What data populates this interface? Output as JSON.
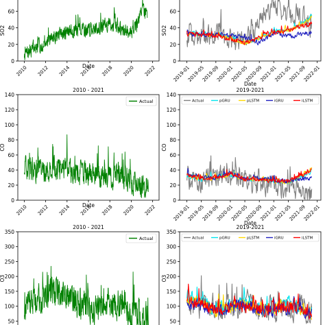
{
  "chart_data": [
    {
      "type": "line",
      "title": "",
      "xlabel": "Date",
      "ylabel": "SO2",
      "xlim": [
        2009.4,
        2022.6
      ],
      "ylim": [
        0,
        90
      ],
      "xticks": [
        "2010",
        "2012",
        "2014",
        "2016",
        "2018",
        "2020",
        "2022"
      ],
      "yticks": [
        0,
        20,
        40,
        60,
        80
      ],
      "legend": null,
      "series": [
        {
          "name": "Actual",
          "color": "#008000",
          "trend": [
            [
              2010.0,
              8
            ],
            [
              2011.0,
              15
            ],
            [
              2012.0,
              22
            ],
            [
              2013.0,
              30
            ],
            [
              2014.0,
              35
            ],
            [
              2015.0,
              38
            ],
            [
              2016.0,
              38
            ],
            [
              2017.0,
              40
            ],
            [
              2018.0,
              45
            ],
            [
              2019.0,
              38
            ],
            [
              2020.0,
              34
            ],
            [
              2020.6,
              45
            ],
            [
              2021.0,
              65
            ],
            [
              2021.5,
              55
            ]
          ],
          "noise": 12
        }
      ]
    },
    {
      "type": "line",
      "title": "",
      "xlabel": "Date",
      "ylabel": "SO2",
      "xlim": [
        "2018-11-01",
        "2022-02-01"
      ],
      "ylim": [
        0,
        90
      ],
      "xticks": [
        "2019-01",
        "2019-05",
        "2019-09",
        "2020-01",
        "2020-05",
        "2020-09",
        "2021-01",
        "2021-05",
        "2021-09",
        "2022-01"
      ],
      "yticks": [
        0,
        20,
        40,
        60,
        80
      ],
      "legend": null,
      "series": [
        {
          "name": "Actual",
          "color": "#808080",
          "trend": [
            [
              "2019-01-01",
              30
            ],
            [
              "2019-05-01",
              28
            ],
            [
              "2019-09-01",
              32
            ],
            [
              "2020-01-01",
              25
            ],
            [
              "2020-05-01",
              22
            ],
            [
              "2020-09-01",
              45
            ],
            [
              "2021-01-01",
              70
            ],
            [
              "2021-05-01",
              55
            ],
            [
              "2021-09-01",
              55
            ],
            [
              "2021-11-15",
              40
            ]
          ],
          "noise": 18
        },
        {
          "name": "pGRU",
          "color": "#00e5ee",
          "trend": [
            [
              "2019-01-01",
              34
            ],
            [
              "2019-05-01",
              32
            ],
            [
              "2019-09-01",
              32
            ],
            [
              "2020-01-01",
              28
            ],
            [
              "2020-05-01",
              22
            ],
            [
              "2020-09-01",
              28
            ],
            [
              "2021-01-01",
              35
            ],
            [
              "2021-05-01",
              38
            ],
            [
              "2021-09-01",
              45
            ],
            [
              "2021-11-15",
              55
            ]
          ],
          "noise": 3
        },
        {
          "name": "pLSTM",
          "color": "#ffd700",
          "trend": [
            [
              "2019-01-01",
              33
            ],
            [
              "2019-05-01",
              31
            ],
            [
              "2019-09-01",
              31
            ],
            [
              "2020-01-01",
              27
            ],
            [
              "2020-05-01",
              21
            ],
            [
              "2020-09-01",
              27
            ],
            [
              "2021-01-01",
              34
            ],
            [
              "2021-05-01",
              37
            ],
            [
              "2021-09-01",
              44
            ],
            [
              "2021-11-15",
              53
            ]
          ],
          "noise": 3
        },
        {
          "name": "iGRU",
          "color": "#1f1fbf",
          "trend": [
            [
              "2019-01-01",
              33
            ],
            [
              "2019-05-01",
              32
            ],
            [
              "2019-09-01",
              32
            ],
            [
              "2020-01-01",
              30
            ],
            [
              "2020-05-01",
              28
            ],
            [
              "2020-09-01",
              22
            ],
            [
              "2021-01-01",
              33
            ],
            [
              "2021-05-01",
              30
            ],
            [
              "2021-09-01",
              32
            ],
            [
              "2021-11-15",
              34
            ]
          ],
          "noise": 4
        },
        {
          "name": "iLSTM",
          "color": "#ff0000",
          "trend": [
            [
              "2019-01-01",
              32
            ],
            [
              "2019-05-01",
              31
            ],
            [
              "2019-09-01",
              31
            ],
            [
              "2020-01-01",
              27
            ],
            [
              "2020-05-01",
              22
            ],
            [
              "2020-09-01",
              28
            ],
            [
              "2021-01-01",
              34
            ],
            [
              "2021-05-01",
              37
            ],
            [
              "2021-09-01",
              42
            ],
            [
              "2021-11-15",
              45
            ]
          ],
          "noise": 4
        }
      ]
    },
    {
      "type": "line",
      "title": "2010 - 2021",
      "xlabel": "Date",
      "ylabel": "CO",
      "xlim": [
        2009.4,
        2022.6
      ],
      "ylim": [
        0,
        140
      ],
      "xticks": [
        "2010",
        "2012",
        "2014",
        "2016",
        "2018",
        "2020",
        "2022"
      ],
      "yticks": [
        0,
        20,
        40,
        60,
        80,
        100,
        120,
        140
      ],
      "legend": "top-right",
      "series": [
        {
          "name": "Actual",
          "color": "#008000",
          "trend": [
            [
              2010.0,
              40
            ],
            [
              2012.0,
              38
            ],
            [
              2013.0,
              42
            ],
            [
              2014.0,
              38
            ],
            [
              2016.0,
              35
            ],
            [
              2018.0,
              32
            ],
            [
              2019.0,
              30
            ],
            [
              2020.0,
              25
            ],
            [
              2021.0,
              15
            ],
            [
              2021.6,
              14
            ]
          ],
          "noise": 22
        }
      ]
    },
    {
      "type": "line",
      "title": "2019-2021",
      "xlabel": "Date",
      "ylabel": "CO",
      "xlim": [
        "2018-11-01",
        "2022-02-01"
      ],
      "ylim": [
        0,
        140
      ],
      "xticks": [
        "2019-01",
        "2019-05",
        "2019-09",
        "2020-01",
        "2020-05",
        "2020-09",
        "2021-01",
        "2021-05",
        "2021-09",
        "2022-01"
      ],
      "yticks": [
        0,
        20,
        40,
        60,
        80,
        100,
        120,
        140
      ],
      "legend": "top",
      "series": [
        {
          "name": "Actual",
          "color": "#808080",
          "trend": [
            [
              "2019-01-01",
              30
            ],
            [
              "2019-05-01",
              25
            ],
            [
              "2019-09-01",
              30
            ],
            [
              "2020-01-01",
              32
            ],
            [
              "2020-05-01",
              25
            ],
            [
              "2020-09-01",
              22
            ],
            [
              "2021-01-01",
              20
            ],
            [
              "2021-05-01",
              15
            ],
            [
              "2021-09-01",
              12
            ],
            [
              "2021-11-15",
              10
            ]
          ],
          "noise": 20
        },
        {
          "name": "pGRU",
          "color": "#00e5ee",
          "trend": [
            [
              "2019-01-01",
              33
            ],
            [
              "2019-05-01",
              28
            ],
            [
              "2019-09-01",
              30
            ],
            [
              "2020-01-01",
              34
            ],
            [
              "2020-05-01",
              28
            ],
            [
              "2020-09-01",
              28
            ],
            [
              "2021-01-01",
              25
            ],
            [
              "2021-05-01",
              24
            ],
            [
              "2021-09-01",
              32
            ],
            [
              "2021-11-15",
              38
            ]
          ],
          "noise": 4
        },
        {
          "name": "pLSTM",
          "color": "#ffd700",
          "trend": [
            [
              "2019-01-01",
              33
            ],
            [
              "2019-05-01",
              28
            ],
            [
              "2019-09-01",
              30
            ],
            [
              "2020-01-01",
              34
            ],
            [
              "2020-05-01",
              28
            ],
            [
              "2020-09-01",
              28
            ],
            [
              "2021-01-01",
              25
            ],
            [
              "2021-05-01",
              24
            ],
            [
              "2021-09-01",
              34
            ],
            [
              "2021-11-15",
              42
            ]
          ],
          "noise": 4
        },
        {
          "name": "iGRU",
          "color": "#1f1fbf",
          "trend": [
            [
              "2019-01-01",
              35
            ],
            [
              "2019-05-01",
              30
            ],
            [
              "2019-09-01",
              30
            ],
            [
              "2020-01-01",
              36
            ],
            [
              "2020-05-01",
              28
            ],
            [
              "2020-09-01",
              28
            ],
            [
              "2021-01-01",
              26
            ],
            [
              "2021-05-01",
              25
            ],
            [
              "2021-09-01",
              28
            ],
            [
              "2021-11-15",
              30
            ]
          ],
          "noise": 4
        },
        {
          "name": "iLSTM",
          "color": "#ff0000",
          "trend": [
            [
              "2019-01-01",
              34
            ],
            [
              "2019-05-01",
              29
            ],
            [
              "2019-09-01",
              30
            ],
            [
              "2020-01-01",
              35
            ],
            [
              "2020-05-01",
              28
            ],
            [
              "2020-09-01",
              28
            ],
            [
              "2021-01-01",
              25
            ],
            [
              "2021-05-01",
              25
            ],
            [
              "2021-09-01",
              33
            ],
            [
              "2021-11-15",
              40
            ]
          ],
          "noise": 4
        }
      ]
    },
    {
      "type": "line",
      "title": "2010 - 2021",
      "xlabel": "",
      "ylabel": "O3",
      "xlim": [
        2009.4,
        2022.6
      ],
      "ylim": [
        0,
        350
      ],
      "xticks": [],
      "yticks": [
        50,
        100,
        150,
        200,
        250,
        300,
        350
      ],
      "legend": "top-right",
      "series": [
        {
          "name": "Actual",
          "color": "#008000",
          "trend": [
            [
              2010.0,
              80
            ],
            [
              2011.0,
              110
            ],
            [
              2012.0,
              120
            ],
            [
              2013.0,
              150
            ],
            [
              2014.0,
              120
            ],
            [
              2015.0,
              110
            ],
            [
              2016.0,
              90
            ],
            [
              2017.0,
              80
            ],
            [
              2018.0,
              110
            ],
            [
              2019.0,
              100
            ],
            [
              2020.0,
              80
            ],
            [
              2021.0,
              60
            ],
            [
              2021.6,
              55
            ]
          ],
          "noise": 70
        }
      ]
    },
    {
      "type": "line",
      "title": "2019-2021",
      "xlabel": "",
      "ylabel": "O3",
      "xlim": [
        "2018-11-01",
        "2022-02-01"
      ],
      "ylim": [
        0,
        350
      ],
      "xticks": [],
      "yticks": [
        50,
        100,
        150,
        200,
        250,
        300,
        350
      ],
      "legend": "top",
      "series": [
        {
          "name": "Actual",
          "color": "#808080",
          "trend": [
            [
              "2019-01-01",
              120
            ],
            [
              "2019-05-01",
              100
            ],
            [
              "2019-09-01",
              80
            ],
            [
              "2020-01-01",
              90
            ],
            [
              "2020-05-01",
              110
            ],
            [
              "2020-09-01",
              90
            ],
            [
              "2021-01-01",
              90
            ],
            [
              "2021-05-01",
              100
            ],
            [
              "2021-09-01",
              90
            ],
            [
              "2021-11-15",
              70
            ]
          ],
          "noise": 60
        },
        {
          "name": "pGRU",
          "color": "#00e5ee",
          "trend": [
            [
              "2019-01-01",
              130
            ],
            [
              "2019-05-01",
              110
            ],
            [
              "2019-09-01",
              90
            ],
            [
              "2020-01-01",
              100
            ],
            [
              "2020-05-01",
              110
            ],
            [
              "2020-09-01",
              95
            ],
            [
              "2021-01-01",
              90
            ],
            [
              "2021-05-01",
              105
            ],
            [
              "2021-09-01",
              95
            ],
            [
              "2021-11-15",
              75
            ]
          ],
          "noise": 35
        },
        {
          "name": "pLSTM",
          "color": "#ffd700",
          "trend": [
            [
              "2019-01-01",
              125
            ],
            [
              "2019-05-01",
              108
            ],
            [
              "2019-09-01",
              88
            ],
            [
              "2020-01-01",
              98
            ],
            [
              "2020-05-01",
              108
            ],
            [
              "2020-09-01",
              93
            ],
            [
              "2021-01-01",
              88
            ],
            [
              "2021-05-01",
              102
            ],
            [
              "2021-09-01",
              92
            ],
            [
              "2021-11-15",
              72
            ]
          ],
          "noise": 30
        },
        {
          "name": "iGRU",
          "color": "#1f1fbf",
          "trend": [
            [
              "2019-01-01",
              115
            ],
            [
              "2019-05-01",
              100
            ],
            [
              "2019-09-01",
              85
            ],
            [
              "2020-01-01",
              92
            ],
            [
              "2020-05-01",
              100
            ],
            [
              "2020-09-01",
              90
            ],
            [
              "2021-01-01",
              85
            ],
            [
              "2021-05-01",
              95
            ],
            [
              "2021-09-01",
              88
            ],
            [
              "2021-11-15",
              68
            ]
          ],
          "noise": 30
        },
        {
          "name": "iLSTM",
          "color": "#ff0000",
          "trend": [
            [
              "2019-01-01",
              118
            ],
            [
              "2019-05-01",
              102
            ],
            [
              "2019-09-01",
              86
            ],
            [
              "2020-01-01",
              95
            ],
            [
              "2020-05-01",
              102
            ],
            [
              "2020-09-01",
              92
            ],
            [
              "2021-01-01",
              86
            ],
            [
              "2021-05-01",
              98
            ],
            [
              "2021-09-01",
              90
            ],
            [
              "2021-11-15",
              70
            ]
          ],
          "noise": 30
        }
      ]
    }
  ]
}
